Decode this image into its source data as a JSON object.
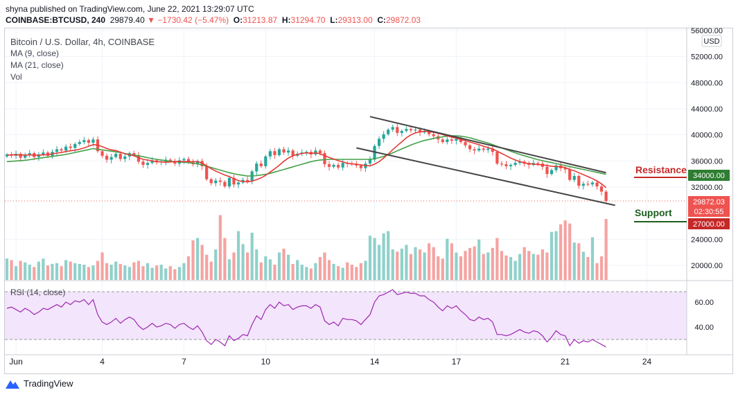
{
  "header": {
    "published": "shyna published on TradingView.com, June 22, 2021 13:29:07 UTC",
    "symbol": "COINBASE:BTCUSD, 240",
    "last": "29879.40",
    "change_icon": "triangle-down-icon",
    "change": "−1730.42 (−5.47%)",
    "o_label": "O:",
    "o": "31213.87",
    "h_label": "H:",
    "h": "31294.70",
    "l_label": "L:",
    "l": "29313.00",
    "c_label": "C:",
    "c": "29872.03"
  },
  "legend": {
    "title": "Bitcoin / U.S. Dollar, 4h, COINBASE",
    "ma9": "MA (9, close)",
    "ma21": "MA (21, close)",
    "vol": "Vol",
    "rsi": "RSI (14, close)"
  },
  "axis": {
    "currency": "USD",
    "price_ticks": [
      "56000.00",
      "52000.00",
      "48000.00",
      "44000.00",
      "40000.00",
      "36000.00",
      "32000.00",
      "24000.00",
      "20000.00"
    ],
    "rsi_ticks": [
      "60.00",
      "40.00"
    ],
    "x_ticks": [
      "Jun",
      "4",
      "7",
      "10",
      "14",
      "17",
      "21",
      "24"
    ]
  },
  "price_badges": {
    "ma_badge": "34000.00",
    "last_price": "29872.03",
    "countdown": "02:30:55",
    "support_level": "27000.00"
  },
  "annotations": {
    "resistance": "Resistance",
    "support": "Support"
  },
  "colors": {
    "up": "#26a69a",
    "down": "#ef5350",
    "ma9": "#e53935",
    "ma21": "#43a047",
    "vol_up": "#8fd1ca",
    "vol_down": "#f5a3a1",
    "rsi": "#9c27b0",
    "rsi_band": "#f3e5fb",
    "channel": "#444444"
  },
  "footer": {
    "logo_icon": "tradingview-logo-icon",
    "brand": "TradingView"
  },
  "chart_data": {
    "type": "candlestick",
    "symbol": "BTCUSD",
    "interval": "4h",
    "ylim": [
      17500,
      57000
    ],
    "rsi_ylim": [
      20,
      75
    ],
    "x_ticks": [
      {
        "label": "Jun",
        "index": 2
      },
      {
        "label": "4",
        "index": 21
      },
      {
        "label": "7",
        "index": 39
      },
      {
        "label": "10",
        "index": 57
      },
      {
        "label": "14",
        "index": 81
      },
      {
        "label": "17",
        "index": 99
      },
      {
        "label": "21",
        "index": 123
      },
      {
        "label": "24",
        "index": 141
      }
    ],
    "close": [
      37000,
      36800,
      37100,
      36500,
      36900,
      37200,
      36600,
      37000,
      37300,
      36800,
      37400,
      37800,
      37600,
      38200,
      38000,
      38600,
      38900,
      39200,
      38800,
      39300,
      37500,
      36800,
      36200,
      36600,
      37100,
      36300,
      36700,
      37200,
      36900,
      35900,
      35400,
      35700,
      36100,
      35800,
      35900,
      36200,
      36000,
      35600,
      36100,
      36300,
      35800,
      35500,
      36000,
      35200,
      33200,
      32600,
      33000,
      32800,
      32100,
      33400,
      32400,
      32700,
      33100,
      32900,
      34400,
      35600,
      35200,
      36700,
      37500,
      36900,
      37800,
      37300,
      37600,
      36800,
      37100,
      37300,
      37400,
      37000,
      37600,
      37200,
      35500,
      35100,
      35400,
      35000,
      35700,
      35600,
      35500,
      35300,
      34900,
      35600,
      36200,
      38300,
      39400,
      40100,
      40800,
      41200,
      40300,
      40600,
      40900,
      40700,
      40800,
      40400,
      40500,
      40100,
      39800,
      39300,
      38900,
      39300,
      39100,
      39400,
      38900,
      38400,
      37800,
      37600,
      37900,
      37700,
      37900,
      37400,
      35600,
      35500,
      35200,
      35400,
      35700,
      35900,
      35600,
      35400,
      35700,
      35600,
      35100,
      34000,
      34600,
      35300,
      34900,
      34700,
      33100,
      33700,
      32200,
      32500,
      32400,
      32700,
      32100,
      31300,
      29872
    ],
    "ma9": [
      36900,
      36950,
      36950,
      36950,
      36900,
      36950,
      36900,
      36900,
      36950,
      36950,
      37100,
      37200,
      37300,
      37450,
      37550,
      37650,
      37800,
      38000,
      38250,
      38500,
      38450,
      38200,
      37900,
      37700,
      37600,
      37350,
      37100,
      36950,
      36800,
      36500,
      36250,
      36150,
      36000,
      35900,
      35850,
      35800,
      35850,
      35900,
      35950,
      35900,
      35900,
      35900,
      35900,
      35700,
      35250,
      34800,
      34450,
      34150,
      33850,
      33600,
      33300,
      33000,
      32850,
      32800,
      32900,
      33150,
      33400,
      33800,
      34300,
      34800,
      35350,
      35950,
      36450,
      36800,
      37000,
      37150,
      37250,
      37150,
      37250,
      37100,
      36800,
      36550,
      36300,
      36050,
      35850,
      35650,
      35550,
      35500,
      35400,
      35300,
      35250,
      35500,
      35900,
      36450,
      37050,
      37750,
      38350,
      38950,
      39550,
      40000,
      40300,
      40450,
      40550,
      40500,
      40400,
      40250,
      40050,
      39850,
      39650,
      39500,
      39300,
      39100,
      38900,
      38700,
      38500,
      38250,
      38050,
      37850,
      37500,
      37150,
      36800,
      36450,
      36150,
      35900,
      35700,
      35600,
      35500,
      35450,
      35400,
      35300,
      35200,
      35150,
      35100,
      35000,
      34700,
      34500,
      34200,
      33900,
      33600,
      33300,
      32950,
      32500,
      31900
    ],
    "ma21": [
      35900,
      35950,
      36000,
      36050,
      36100,
      36200,
      36300,
      36400,
      36500,
      36600,
      36700,
      36800,
      36900,
      37000,
      37150,
      37300,
      37450,
      37600,
      37750,
      37900,
      37800,
      37700,
      37600,
      37500,
      37400,
      37300,
      37150,
      37000,
      36900,
      36800,
      36650,
      36500,
      36350,
      36250,
      36150,
      36050,
      35950,
      35900,
      35850,
      35800,
      35750,
      35650,
      35550,
      35400,
      35200,
      35000,
      34800,
      34600,
      34400,
      34200,
      34050,
      33900,
      33800,
      33700,
      33700,
      33750,
      33850,
      33950,
      34100,
      34300,
      34500,
      34700,
      34900,
      35100,
      35300,
      35500,
      35700,
      35900,
      36050,
      36150,
      36200,
      36250,
      36250,
      36250,
      36250,
      36250,
      36250,
      36250,
      36250,
      36250,
      36250,
      36350,
      36500,
      36700,
      36950,
      37250,
      37550,
      37850,
      38150,
      38450,
      38700,
      38950,
      39150,
      39300,
      39450,
      39600,
      39700,
      39800,
      39850,
      39850,
      39800,
      39700,
      39550,
      39350,
      39150,
      38950,
      38750,
      38500,
      38250,
      38000,
      37750,
      37500,
      37250,
      37000,
      36800,
      36600,
      36400,
      36200,
      36050,
      35900,
      35750,
      35600,
      35450,
      35300,
      35150,
      35000,
      34850,
      34700,
      34550,
      34400,
      34250,
      34100,
      33950
    ],
    "volume_relative": [
      0.28,
      0.26,
      0.18,
      0.25,
      0.23,
      0.2,
      0.17,
      0.24,
      0.28,
      0.19,
      0.21,
      0.22,
      0.18,
      0.26,
      0.24,
      0.22,
      0.21,
      0.2,
      0.17,
      0.19,
      0.25,
      0.36,
      0.22,
      0.2,
      0.24,
      0.21,
      0.19,
      0.17,
      0.23,
      0.25,
      0.18,
      0.22,
      0.16,
      0.19,
      0.2,
      0.15,
      0.18,
      0.14,
      0.17,
      0.22,
      0.31,
      0.52,
      0.55,
      0.46,
      0.33,
      0.24,
      0.4,
      0.85,
      0.55,
      0.27,
      0.36,
      0.64,
      0.47,
      0.36,
      0.62,
      0.4,
      0.23,
      0.31,
      0.27,
      0.2,
      0.36,
      0.41,
      0.33,
      0.21,
      0.26,
      0.2,
      0.17,
      0.15,
      0.22,
      0.3,
      0.36,
      0.26,
      0.21,
      0.18,
      0.16,
      0.23,
      0.2,
      0.17,
      0.22,
      0.25,
      0.58,
      0.55,
      0.46,
      0.61,
      0.64,
      0.4,
      0.37,
      0.41,
      0.46,
      0.34,
      0.43,
      0.4,
      0.36,
      0.48,
      0.43,
      0.31,
      0.28,
      0.54,
      0.48,
      0.36,
      0.31,
      0.38,
      0.42,
      0.44,
      0.53,
      0.34,
      0.36,
      0.42,
      0.55,
      0.38,
      0.32,
      0.3,
      0.25,
      0.34,
      0.43,
      0.38,
      0.34,
      0.33,
      0.4,
      0.36,
      0.63,
      0.64,
      0.73,
      0.78,
      0.74,
      0.49,
      0.48,
      0.37,
      0.3,
      0.56,
      0.22,
      0.31,
      0.8
    ],
    "rsi": [
      55,
      56,
      54,
      52,
      55,
      53,
      50,
      52,
      55,
      54,
      56,
      58,
      56,
      60,
      58,
      61,
      60,
      62,
      58,
      62,
      50,
      44,
      42,
      44,
      47,
      43,
      46,
      48,
      46,
      41,
      38,
      40,
      43,
      40,
      41,
      43,
      42,
      39,
      42,
      43,
      40,
      38,
      41,
      36,
      29,
      26,
      30,
      28,
      25,
      33,
      29,
      31,
      34,
      33,
      42,
      49,
      46,
      54,
      58,
      55,
      60,
      57,
      58,
      54,
      56,
      57,
      57,
      55,
      58,
      56,
      45,
      42,
      44,
      41,
      47,
      46,
      46,
      45,
      42,
      46,
      50,
      60,
      65,
      66,
      68,
      70,
      66,
      67,
      68,
      67,
      67,
      65,
      65,
      62,
      60,
      56,
      53,
      57,
      55,
      57,
      53,
      50,
      46,
      45,
      48,
      46,
      47,
      44,
      34,
      34,
      33,
      34,
      36,
      38,
      36,
      35,
      37,
      36,
      33,
      28,
      32,
      37,
      34,
      33,
      25,
      30,
      27,
      29,
      28,
      30,
      28,
      26,
      24
    ],
    "channel": {
      "upper": [
        {
          "index": 80,
          "price": 42800
        },
        {
          "index": 132,
          "price": 34200
        }
      ],
      "lower": [
        {
          "index": 77,
          "price": 38000
        },
        {
          "index": 134,
          "price": 29200
        }
      ]
    },
    "levels": {
      "resistance": 34000,
      "support": 27000
    },
    "last_price": 29872.03,
    "rsi_bands": [
      70,
      30
    ]
  }
}
